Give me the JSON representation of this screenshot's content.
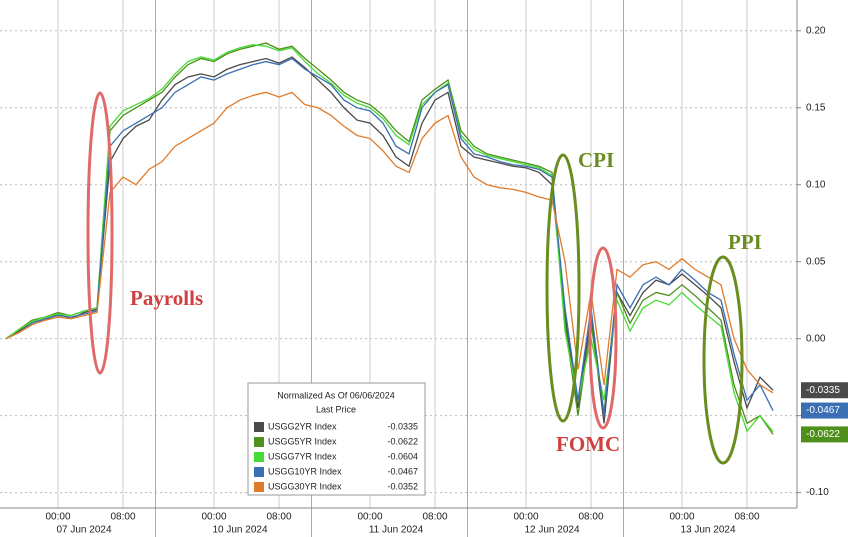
{
  "chart_data": {
    "type": "line",
    "categories": [
      null,
      null,
      null,
      null,
      "00:00",
      null,
      null,
      null,
      null,
      "08:00",
      null,
      null,
      null,
      null,
      null,
      null,
      "00:00",
      null,
      null,
      null,
      null,
      "08:00",
      null,
      null,
      null,
      null,
      null,
      null,
      "00:00",
      null,
      null,
      null,
      null,
      "08:00",
      null,
      null,
      null,
      null,
      null,
      null,
      "00:00",
      null,
      null,
      null,
      null,
      "08:00",
      null,
      null,
      null,
      null,
      null,
      null,
      "00:00",
      null,
      null,
      null,
      null,
      "08:00",
      null,
      null
    ],
    "category_dates": [
      null,
      null,
      null,
      null,
      null,
      null,
      "07 Jun 2024",
      null,
      null,
      null,
      null,
      null,
      null,
      null,
      null,
      null,
      null,
      null,
      "10 Jun 2024",
      null,
      null,
      null,
      null,
      null,
      null,
      null,
      null,
      null,
      null,
      null,
      "11 Jun 2024",
      null,
      null,
      null,
      null,
      null,
      null,
      null,
      null,
      null,
      null,
      null,
      "12 Jun 2024",
      null,
      null,
      null,
      null,
      null,
      null,
      null,
      null,
      null,
      null,
      null,
      "13 Jun 2024",
      null,
      null,
      null,
      null,
      null
    ],
    "ylim": [
      -0.11,
      0.22
    ],
    "yticks": [
      {
        "value": 0.2,
        "label": "0.20"
      },
      {
        "value": 0.15,
        "label": "0.15"
      },
      {
        "value": 0.1,
        "label": "0.10"
      },
      {
        "value": 0.05,
        "label": "0.05"
      },
      {
        "value": 0,
        "label": "0.00"
      },
      {
        "value": -0.05,
        "label": "-0.05"
      },
      {
        "value": -0.1,
        "label": "-0.10"
      }
    ],
    "grid": true,
    "legend": {
      "title": "Normalized As Of 06/06/2024",
      "subtitle": "Last Price"
    },
    "annotations": [
      {
        "text": "Payrolls",
        "color": "#cf3f3f"
      },
      {
        "text": "CPI",
        "color": "#6b8c1f"
      },
      {
        "text": "FOMC",
        "color": "#cf3f3f"
      },
      {
        "text": "PPI",
        "color": "#6b8c1f"
      }
    ],
    "series": [
      {
        "name": "USGG2YR Index",
        "color": "#4a4a4a",
        "end_tag": true,
        "values": [
          0.0,
          0.005,
          0.011,
          0.012,
          0.016,
          0.013,
          0.017,
          0.019,
          0.115,
          0.13,
          0.138,
          0.142,
          0.155,
          0.165,
          0.17,
          0.172,
          0.17,
          0.175,
          0.178,
          0.18,
          0.182,
          0.179,
          0.183,
          0.176,
          0.168,
          0.16,
          0.15,
          0.142,
          0.14,
          0.132,
          0.118,
          0.112,
          0.14,
          0.155,
          0.16,
          0.125,
          0.118,
          0.116,
          0.114,
          0.112,
          0.111,
          0.108,
          0.1,
          0.015,
          -0.045,
          0.015,
          -0.055,
          0.03,
          0.015,
          0.03,
          0.038,
          0.035,
          0.042,
          0.035,
          0.028,
          0.02,
          -0.015,
          -0.045,
          -0.025,
          -0.0335
        ]
      },
      {
        "name": "USGG5YR Index",
        "color": "#4f8f1c",
        "end_tag": true,
        "values": [
          0.0,
          0.006,
          0.012,
          0.014,
          0.017,
          0.015,
          0.018,
          0.02,
          0.135,
          0.145,
          0.15,
          0.155,
          0.16,
          0.17,
          0.178,
          0.182,
          0.18,
          0.185,
          0.188,
          0.19,
          0.192,
          0.188,
          0.19,
          0.182,
          0.175,
          0.168,
          0.16,
          0.155,
          0.152,
          0.145,
          0.135,
          0.128,
          0.155,
          0.162,
          0.168,
          0.135,
          0.125,
          0.12,
          0.118,
          0.116,
          0.114,
          0.112,
          0.108,
          0.01,
          -0.05,
          0.01,
          -0.048,
          0.03,
          0.01,
          0.025,
          0.03,
          0.028,
          0.035,
          0.028,
          0.02,
          0.012,
          -0.03,
          -0.055,
          -0.05,
          -0.0622
        ]
      },
      {
        "name": "USGG7YR Index",
        "color": "#46dc34",
        "end_tag": false,
        "values": [
          0.0,
          0.006,
          0.011,
          0.014,
          0.016,
          0.015,
          0.018,
          0.02,
          0.138,
          0.148,
          0.152,
          0.156,
          0.162,
          0.172,
          0.18,
          0.183,
          0.181,
          0.186,
          0.189,
          0.191,
          0.19,
          0.187,
          0.189,
          0.18,
          0.172,
          0.166,
          0.158,
          0.153,
          0.15,
          0.143,
          0.132,
          0.126,
          0.152,
          0.16,
          0.166,
          0.132,
          0.123,
          0.119,
          0.117,
          0.115,
          0.113,
          0.111,
          0.106,
          0.005,
          -0.04,
          0.0,
          -0.04,
          0.025,
          0.005,
          0.02,
          0.025,
          0.022,
          0.03,
          0.022,
          0.015,
          0.008,
          -0.035,
          -0.06,
          -0.05,
          -0.0604
        ]
      },
      {
        "name": "USGG10YR Index",
        "color": "#3a6fb3",
        "end_tag": true,
        "values": [
          0.0,
          0.004,
          0.01,
          0.013,
          0.015,
          0.014,
          0.016,
          0.018,
          0.125,
          0.135,
          0.14,
          0.145,
          0.15,
          0.16,
          0.165,
          0.17,
          0.168,
          0.172,
          0.175,
          0.178,
          0.18,
          0.178,
          0.182,
          0.175,
          0.17,
          0.165,
          0.155,
          0.15,
          0.148,
          0.14,
          0.125,
          0.12,
          0.15,
          0.16,
          0.165,
          0.13,
          0.12,
          0.118,
          0.115,
          0.113,
          0.112,
          0.11,
          0.105,
          0.02,
          -0.04,
          0.02,
          -0.05,
          0.035,
          0.02,
          0.035,
          0.04,
          0.035,
          0.045,
          0.038,
          0.03,
          0.025,
          -0.01,
          -0.04,
          -0.03,
          -0.0467
        ]
      },
      {
        "name": "USGG30YR Index",
        "color": "#e07b2a",
        "end_tag": false,
        "values": [
          0.0,
          0.004,
          0.009,
          0.012,
          0.014,
          0.013,
          0.015,
          0.017,
          0.095,
          0.105,
          0.1,
          0.11,
          0.115,
          0.125,
          0.13,
          0.135,
          0.14,
          0.15,
          0.155,
          0.158,
          0.16,
          0.157,
          0.16,
          0.152,
          0.15,
          0.145,
          0.138,
          0.132,
          0.13,
          0.122,
          0.112,
          0.108,
          0.13,
          0.14,
          0.145,
          0.118,
          0.105,
          0.1,
          0.098,
          0.097,
          0.095,
          0.092,
          0.09,
          0.05,
          -0.02,
          0.03,
          -0.03,
          0.045,
          0.04,
          0.048,
          0.05,
          0.045,
          0.052,
          0.045,
          0.04,
          0.035,
          0.0,
          -0.02,
          -0.03,
          -0.0352
        ]
      }
    ]
  }
}
